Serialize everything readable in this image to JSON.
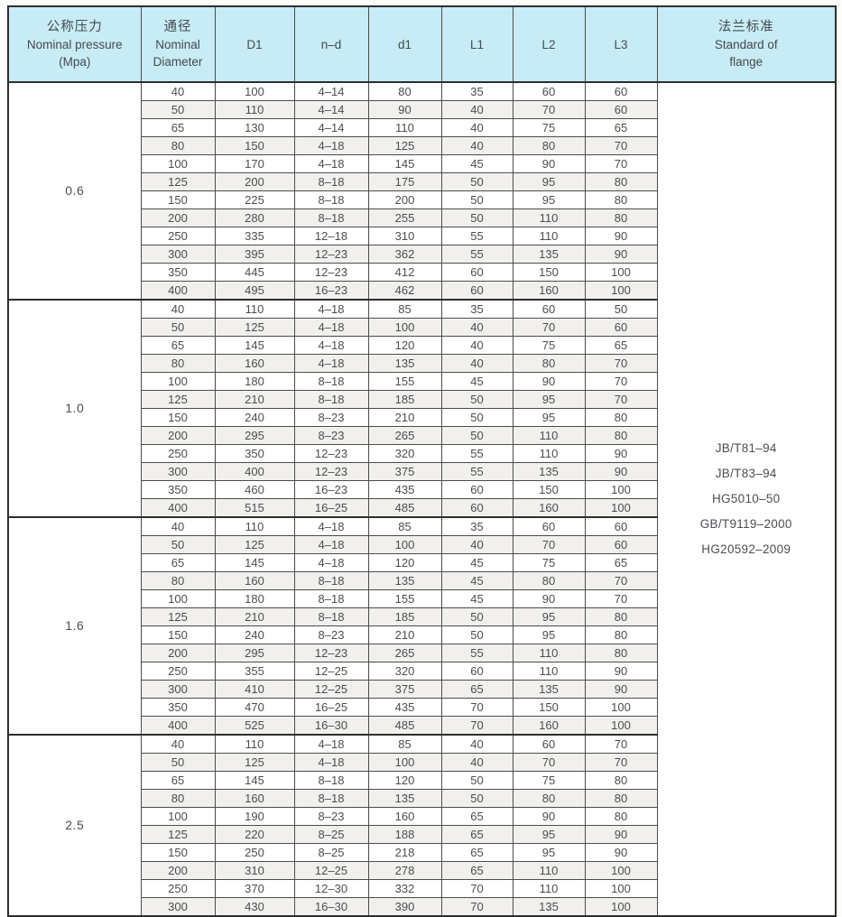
{
  "table": {
    "header": {
      "pressure": {
        "zh": "公称压力",
        "en": "Nominal pressure",
        "unit": "(Mpa)"
      },
      "diameter": {
        "zh": "通径",
        "en1": "Nominal",
        "en2": "Diameter"
      },
      "d1_outer": "D1",
      "nd": "n–d",
      "d1": "d1",
      "l1": "L1",
      "l2": "L2",
      "l3": "L3",
      "standard": {
        "zh": "法兰标准",
        "en1": "Standard of",
        "en2": "flange"
      }
    },
    "groups": [
      {
        "pressure": "0.6",
        "rows": [
          [
            "40",
            "100",
            "4–14",
            "80",
            "35",
            "60",
            "60"
          ],
          [
            "50",
            "110",
            "4–14",
            "90",
            "40",
            "70",
            "60"
          ],
          [
            "65",
            "130",
            "4–14",
            "110",
            "40",
            "75",
            "65"
          ],
          [
            "80",
            "150",
            "4–18",
            "125",
            "40",
            "80",
            "70"
          ],
          [
            "100",
            "170",
            "4–18",
            "145",
            "45",
            "90",
            "70"
          ],
          [
            "125",
            "200",
            "8–18",
            "175",
            "50",
            "95",
            "80"
          ],
          [
            "150",
            "225",
            "8–18",
            "200",
            "50",
            "95",
            "80"
          ],
          [
            "200",
            "280",
            "8–18",
            "255",
            "50",
            "110",
            "80"
          ],
          [
            "250",
            "335",
            "12–18",
            "310",
            "55",
            "110",
            "90"
          ],
          [
            "300",
            "395",
            "12–23",
            "362",
            "55",
            "135",
            "90"
          ],
          [
            "350",
            "445",
            "12–23",
            "412",
            "60",
            "150",
            "100"
          ],
          [
            "400",
            "495",
            "16–23",
            "462",
            "60",
            "160",
            "100"
          ]
        ]
      },
      {
        "pressure": "1.0",
        "rows": [
          [
            "40",
            "110",
            "4–18",
            "85",
            "35",
            "60",
            "50"
          ],
          [
            "50",
            "125",
            "4–18",
            "100",
            "40",
            "70",
            "60"
          ],
          [
            "65",
            "145",
            "4–18",
            "120",
            "40",
            "75",
            "65"
          ],
          [
            "80",
            "160",
            "4–18",
            "135",
            "40",
            "80",
            "70"
          ],
          [
            "100",
            "180",
            "8–18",
            "155",
            "45",
            "90",
            "70"
          ],
          [
            "125",
            "210",
            "8–18",
            "185",
            "50",
            "95",
            "70"
          ],
          [
            "150",
            "240",
            "8–23",
            "210",
            "50",
            "95",
            "80"
          ],
          [
            "200",
            "295",
            "8–23",
            "265",
            "50",
            "110",
            "80"
          ],
          [
            "250",
            "350",
            "12–23",
            "320",
            "55",
            "110",
            "90"
          ],
          [
            "300",
            "400",
            "12–23",
            "375",
            "55",
            "135",
            "90"
          ],
          [
            "350",
            "460",
            "16–23",
            "435",
            "60",
            "150",
            "100"
          ],
          [
            "400",
            "515",
            "16–25",
            "485",
            "60",
            "160",
            "100"
          ]
        ]
      },
      {
        "pressure": "1.6",
        "rows": [
          [
            "40",
            "110",
            "4–18",
            "85",
            "35",
            "60",
            "60"
          ],
          [
            "50",
            "125",
            "4–18",
            "100",
            "40",
            "70",
            "60"
          ],
          [
            "65",
            "145",
            "4–18",
            "120",
            "45",
            "75",
            "65"
          ],
          [
            "80",
            "160",
            "8–18",
            "135",
            "45",
            "80",
            "70"
          ],
          [
            "100",
            "180",
            "8–18",
            "155",
            "45",
            "90",
            "70"
          ],
          [
            "125",
            "210",
            "8–18",
            "185",
            "50",
            "95",
            "80"
          ],
          [
            "150",
            "240",
            "8–23",
            "210",
            "50",
            "95",
            "80"
          ],
          [
            "200",
            "295",
            "12–23",
            "265",
            "55",
            "110",
            "80"
          ],
          [
            "250",
            "355",
            "12–25",
            "320",
            "60",
            "110",
            "90"
          ],
          [
            "300",
            "410",
            "12–25",
            "375",
            "65",
            "135",
            "90"
          ],
          [
            "350",
            "470",
            "16–25",
            "435",
            "70",
            "150",
            "100"
          ],
          [
            "400",
            "525",
            "16–30",
            "485",
            "70",
            "160",
            "100"
          ]
        ]
      },
      {
        "pressure": "2.5",
        "rows": [
          [
            "40",
            "110",
            "4–18",
            "85",
            "40",
            "60",
            "70"
          ],
          [
            "50",
            "125",
            "4–18",
            "100",
            "40",
            "70",
            "70"
          ],
          [
            "65",
            "145",
            "8–18",
            "120",
            "50",
            "75",
            "80"
          ],
          [
            "80",
            "160",
            "8–18",
            "135",
            "50",
            "80",
            "80"
          ],
          [
            "100",
            "190",
            "8–23",
            "160",
            "65",
            "90",
            "80"
          ],
          [
            "125",
            "220",
            "8–25",
            "188",
            "65",
            "95",
            "90"
          ],
          [
            "150",
            "250",
            "8–25",
            "218",
            "65",
            "95",
            "90"
          ],
          [
            "200",
            "310",
            "12–25",
            "278",
            "65",
            "110",
            "100"
          ],
          [
            "250",
            "370",
            "12–30",
            "332",
            "70",
            "110",
            "100"
          ],
          [
            "300",
            "430",
            "16–30",
            "390",
            "70",
            "135",
            "100"
          ]
        ]
      }
    ],
    "standards": [
      "JB/T81–94",
      "JB/T83–94",
      "HG5010–50",
      "GB/T9119–2000",
      "HG20592–2009"
    ]
  }
}
